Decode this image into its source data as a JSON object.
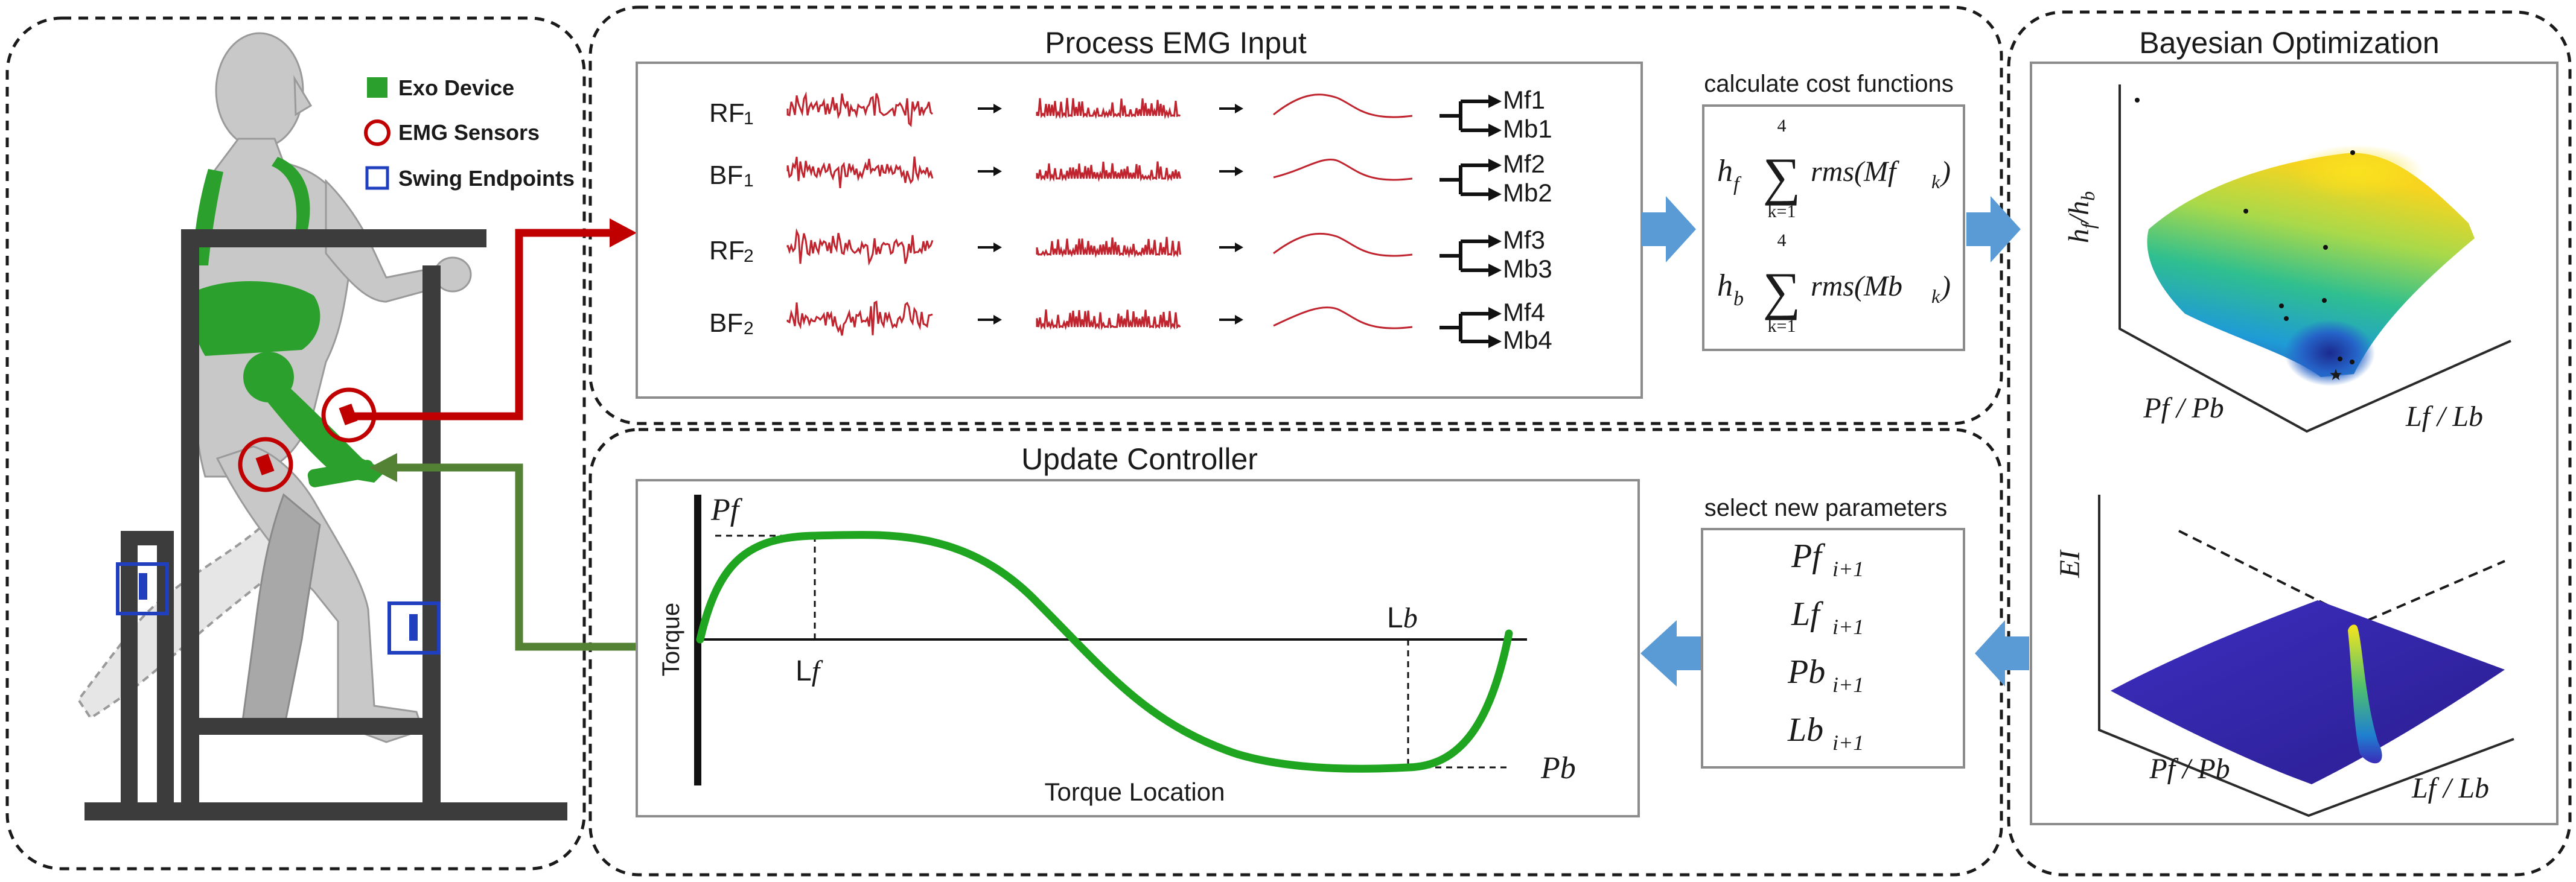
{
  "legend": {
    "exo_device": "Exo Device",
    "emg_sensors": "EMG Sensors",
    "swing_endpoints": "Swing Endpoints",
    "exo_color": "#2ca02c",
    "sensor_color": "#c00000",
    "endpoint_color": "#1f3fbf"
  },
  "process_emg": {
    "title": "Process EMG Input",
    "rows": [
      {
        "muscle": "RF",
        "sub": "1",
        "outputs": [
          "Mf1",
          "Mb1"
        ]
      },
      {
        "muscle": "BF",
        "sub": "1",
        "outputs": [
          "Mf2",
          "Mb2"
        ]
      },
      {
        "muscle": "RF",
        "sub": "2",
        "outputs": [
          "Mf3",
          "Mb3"
        ]
      },
      {
        "muscle": "BF",
        "sub": "2",
        "outputs": [
          "Mf4",
          "Mb4"
        ]
      }
    ]
  },
  "cost": {
    "caption": "calculate cost functions",
    "upper_limit": "4",
    "lower_limit": "k=1",
    "term_front": "rms(Mf",
    "term_back": "rms(Mb",
    "sub_k": "k",
    "close": ")",
    "h": "h",
    "f": "f",
    "b": "b"
  },
  "bayes": {
    "title": "Bayesian Optimization",
    "top_zlabel": "h",
    "top_zlabel_f": "f",
    "top_zlabel_slash": "/h",
    "top_zlabel_b": "b",
    "axis_p": "Pf / Pb",
    "axis_l": "Lf / Lb",
    "bottom_zlabel": "EI"
  },
  "update": {
    "title": "Update Controller",
    "y_axis": "Torque",
    "x_axis": "Torque Location",
    "pf": "Pf",
    "pb": "Pb",
    "lf_pre": "L",
    "lf_it": "f",
    "lb_pre": "L",
    "lb_it": "b"
  },
  "params": {
    "caption": "select new parameters",
    "items": [
      {
        "name": "Pf",
        "sub": "i+1"
      },
      {
        "name": "Lf",
        "sub": "i+1"
      },
      {
        "name": "Pb",
        "sub": "i+1"
      },
      {
        "name": "Lb",
        "sub": "i+1"
      }
    ]
  },
  "colors": {
    "flow_red": "#c00000",
    "flow_green": "#548235",
    "block_arrow": "#5b9bd5",
    "emg_signal": "#c0252f",
    "torque_curve": "#1fa51f"
  }
}
